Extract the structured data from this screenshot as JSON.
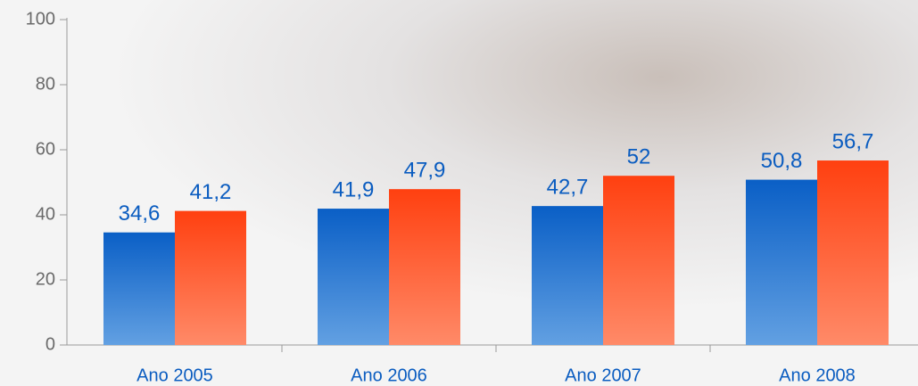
{
  "chart_data": {
    "type": "bar",
    "categories": [
      "Ano 2005",
      "Ano 2006",
      "Ano 2007",
      "Ano 2008"
    ],
    "series": [
      {
        "color": "#0a62c8",
        "values": [
          34.6,
          41.9,
          42.7,
          50.8
        ],
        "value_labels": [
          "34,6",
          "41,9",
          "42,7",
          "50,8"
        ]
      },
      {
        "color": "#ff4415",
        "values": [
          41.2,
          47.9,
          52,
          56.7
        ],
        "value_labels": [
          "41,2",
          "47,9",
          "52",
          "56,7"
        ]
      }
    ],
    "ylim": [
      0,
      100
    ],
    "yticks": [
      0,
      20,
      40,
      60,
      80,
      100
    ],
    "grid": false
  }
}
